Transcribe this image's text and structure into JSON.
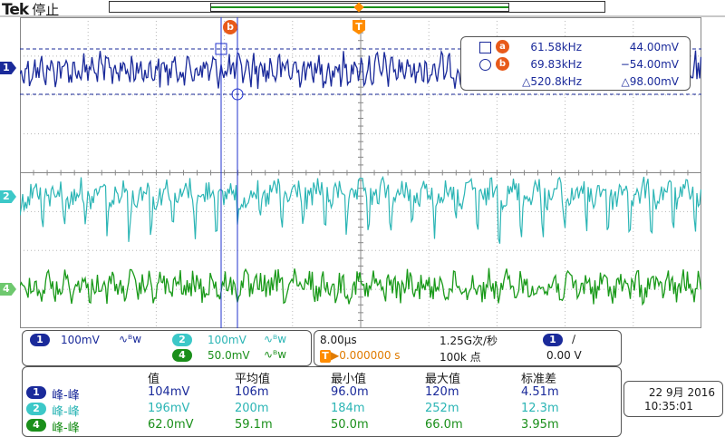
{
  "brand": "Tek",
  "state": "停止",
  "cursor_marker_b": "b",
  "trigger_marker": "T",
  "channel_markers": [
    "1",
    "2",
    "4"
  ],
  "cursors": {
    "a_label": "a",
    "a_freq": "61.58kHz",
    "a_volt": "44.00mV",
    "b_label": "b",
    "b_freq": "69.83kHz",
    "b_volt": "−54.00mV",
    "delta_freq": "△520.8kHz",
    "delta_volt": "△98.00mV"
  },
  "channels": [
    {
      "id": "1",
      "scale": "100mV",
      "bw": "∿ᴮw",
      "color": "#1a2a9a"
    },
    {
      "id": "2",
      "scale": "100mV",
      "bw": "∿ᴮw",
      "color": "#3cc8c8"
    },
    {
      "id": "4",
      "scale": "50.0mV",
      "bw": "∿ᴮw",
      "color": "#1a8f1a"
    }
  ],
  "horizontal": {
    "timebase": "8.00μs",
    "sample_rate": "1.25G次/秒",
    "record": "100k 点",
    "trig_pos": "▶0.000000 s",
    "trig_source": "1",
    "trig_slope": "∕",
    "trig_level": "0.00 V"
  },
  "measurements": {
    "headers": [
      "值",
      "平均值",
      "最小值",
      "最大值",
      "标准差"
    ],
    "rows": [
      {
        "ch": "1",
        "name": "峰-峰",
        "value": "104mV",
        "mean": "106m",
        "min": "96.0m",
        "max": "120m",
        "std": "4.51m"
      },
      {
        "ch": "2",
        "name": "峰-峰",
        "value": "196mV",
        "mean": "200m",
        "min": "184m",
        "max": "252m",
        "std": "12.3m"
      },
      {
        "ch": "4",
        "name": "峰-峰",
        "value": "62.0mV",
        "mean": "59.1m",
        "min": "50.0m",
        "max": "66.0m",
        "std": "3.95m"
      }
    ]
  },
  "datetime": {
    "date": "22 9月 2016",
    "time": "10:35:01"
  },
  "colors": {
    "ch1": "#1a2a9a",
    "ch2": "#3cc8c8",
    "ch4": "#1a8f1a",
    "cursor": "#e85a1a",
    "trigger": "#ff8c00"
  }
}
